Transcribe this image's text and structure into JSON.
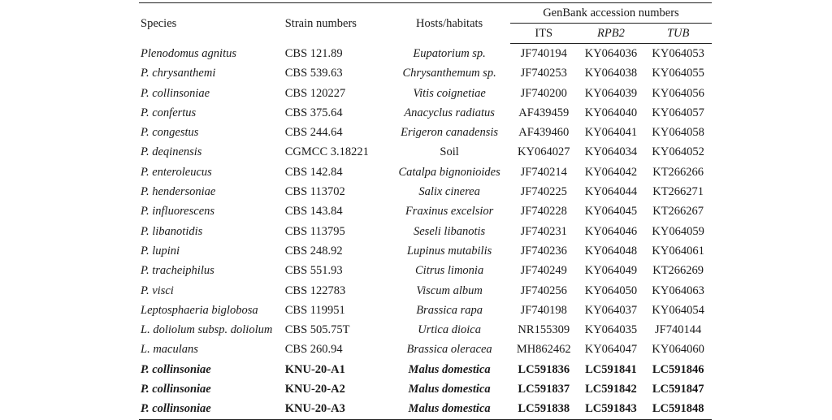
{
  "headers": {
    "species": "Species",
    "strain": "Strain numbers",
    "hosts": "Hosts/habitats",
    "genbank": "GenBank accession numbers",
    "its": "ITS",
    "rpb2": "RPB2",
    "tub": "TUB"
  },
  "rows": [
    {
      "species": "Plenodomus agnitus",
      "strain": "CBS 121.89",
      "host": "Eupatorium sp.",
      "its": "JF740194",
      "rpb2": "KY064036",
      "tub": "KY064053",
      "bold": false,
      "host_italic": true
    },
    {
      "species": "P. chrysanthemi",
      "strain": "CBS 539.63",
      "host": "Chrysanthemum sp.",
      "its": "JF740253",
      "rpb2": "KY064038",
      "tub": "KY064055",
      "bold": false,
      "host_italic": true
    },
    {
      "species": "P. collinsoniae",
      "strain": "CBS 120227",
      "host": "Vitis coignetiae",
      "its": "JF740200",
      "rpb2": "KY064039",
      "tub": "KY064056",
      "bold": false,
      "host_italic": true
    },
    {
      "species": "P. confertus",
      "strain": "CBS 375.64",
      "host": "Anacyclus radiatus",
      "its": "AF439459",
      "rpb2": "KY064040",
      "tub": "KY064057",
      "bold": false,
      "host_italic": true
    },
    {
      "species": "P. congestus",
      "strain": "CBS 244.64",
      "host": "Erigeron canadensis",
      "its": "AF439460",
      "rpb2": "KY064041",
      "tub": "KY064058",
      "bold": false,
      "host_italic": true
    },
    {
      "species": "P. deqinensis",
      "strain": "CGMCC 3.18221",
      "host": "Soil",
      "its": "KY064027",
      "rpb2": "KY064034",
      "tub": "KY064052",
      "bold": false,
      "host_italic": false
    },
    {
      "species": "P. enteroleucus",
      "strain": "CBS 142.84",
      "host": "Catalpa bignonioides",
      "its": "JF740214",
      "rpb2": "KY064042",
      "tub": "KT266266",
      "bold": false,
      "host_italic": true
    },
    {
      "species": "P. hendersoniae",
      "strain": "CBS 113702",
      "host": "Salix cinerea",
      "its": "JF740225",
      "rpb2": "KY064044",
      "tub": "KT266271",
      "bold": false,
      "host_italic": true
    },
    {
      "species": "P. influorescens",
      "strain": "CBS 143.84",
      "host": "Fraxinus excelsior",
      "its": "JF740228",
      "rpb2": "KY064045",
      "tub": "KT266267",
      "bold": false,
      "host_italic": true
    },
    {
      "species": "P. libanotidis",
      "strain": "CBS 113795",
      "host": "Seseli libanotis",
      "its": "JF740231",
      "rpb2": "KY064046",
      "tub": "KY064059",
      "bold": false,
      "host_italic": true
    },
    {
      "species": "P. lupini",
      "strain": "CBS 248.92",
      "host": "Lupinus mutabilis",
      "its": "JF740236",
      "rpb2": "KY064048",
      "tub": "KY064061",
      "bold": false,
      "host_italic": true
    },
    {
      "species": "P. tracheiphilus",
      "strain": "CBS 551.93",
      "host": "Citrus limonia",
      "its": "JF740249",
      "rpb2": "KY064049",
      "tub": "KT266269",
      "bold": false,
      "host_italic": true
    },
    {
      "species": "P. visci",
      "strain": "CBS 122783",
      "host": "Viscum album",
      "its": "JF740256",
      "rpb2": "KY064050",
      "tub": "KY064063",
      "bold": false,
      "host_italic": true
    },
    {
      "species": "Leptosphaeria biglobosa",
      "strain": "CBS 119951",
      "host": "Brassica rapa",
      "its": "JF740198",
      "rpb2": "KY064037",
      "tub": "KY064054",
      "bold": false,
      "host_italic": true
    },
    {
      "species": "L. doliolum subsp. doliolum",
      "strain": "CBS 505.75T",
      "host": "Urtica dioica",
      "its": "NR155309",
      "rpb2": "KY064035",
      "tub": "JF740144",
      "bold": false,
      "host_italic": true
    },
    {
      "species": "L. maculans",
      "strain": "CBS 260.94",
      "host": "Brassica oleracea",
      "its": "MH862462",
      "rpb2": "KY064047",
      "tub": "KY064060",
      "bold": false,
      "host_italic": true
    },
    {
      "species": "P. collinsoniae",
      "strain": "KNU-20-A1",
      "host": "Malus domestica",
      "its": "LC591836",
      "rpb2": "LC591841",
      "tub": "LC591846",
      "bold": true,
      "host_italic": true
    },
    {
      "species": "P. collinsoniae",
      "strain": "KNU-20-A2",
      "host": "Malus domestica",
      "its": "LC591837",
      "rpb2": "LC591842",
      "tub": "LC591847",
      "bold": true,
      "host_italic": true
    },
    {
      "species": "P. collinsoniae",
      "strain": "KNU-20-A3",
      "host": "Malus domestica",
      "its": "LC591838",
      "rpb2": "LC591843",
      "tub": "LC591848",
      "bold": true,
      "host_italic": true
    }
  ]
}
